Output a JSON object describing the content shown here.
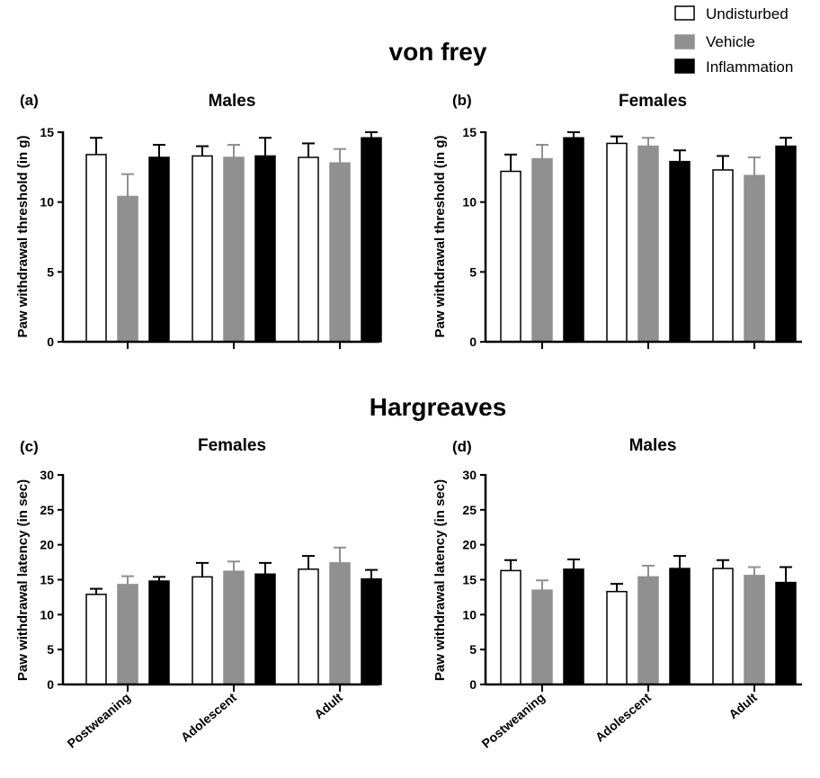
{
  "sections": [
    {
      "title": "von frey"
    },
    {
      "title": "Hargreaves"
    }
  ],
  "legend": [
    {
      "name": "Undisturbed",
      "color": "#ffffff"
    },
    {
      "name": "Vehicle",
      "color": "#909090"
    },
    {
      "name": "Inflammation",
      "color": "#000000"
    }
  ],
  "chart_data": [
    {
      "type": "bar",
      "panel": "(a)",
      "title": "Males",
      "ylabel": "Paw withdrawal threshold (in g)",
      "ylim": [
        0,
        15
      ],
      "yticks": [
        0,
        5,
        10,
        15
      ],
      "categories": [
        "",
        "",
        ""
      ],
      "series": [
        {
          "name": "Undisturbed",
          "values": [
            13.4,
            13.3,
            13.2
          ],
          "errors": [
            1.2,
            0.7,
            1.0
          ]
        },
        {
          "name": "Vehicle",
          "values": [
            10.4,
            13.2,
            12.8
          ],
          "errors": [
            1.6,
            0.9,
            1.0
          ]
        },
        {
          "name": "Inflammation",
          "values": [
            13.2,
            13.3,
            14.6
          ],
          "errors": [
            0.9,
            1.3,
            0.4
          ]
        }
      ]
    },
    {
      "type": "bar",
      "panel": "(b)",
      "title": "Females",
      "ylabel": "Paw withdrawal threshold (in g)",
      "ylim": [
        0,
        15
      ],
      "yticks": [
        0,
        5,
        10,
        15
      ],
      "categories": [
        "",
        "",
        ""
      ],
      "series": [
        {
          "name": "Undisturbed",
          "values": [
            12.2,
            14.2,
            12.3
          ],
          "errors": [
            1.2,
            0.5,
            1.0
          ]
        },
        {
          "name": "Vehicle",
          "values": [
            13.1,
            14.0,
            11.9
          ],
          "errors": [
            1.0,
            0.6,
            1.3
          ]
        },
        {
          "name": "Inflammation",
          "values": [
            14.6,
            12.9,
            14.0
          ],
          "errors": [
            0.4,
            0.8,
            0.6
          ]
        }
      ]
    },
    {
      "type": "bar",
      "panel": "(c)",
      "title": "Females",
      "ylabel": "Paw withdrawal latency (in sec)",
      "ylim": [
        0,
        30
      ],
      "yticks": [
        0,
        5,
        10,
        15,
        20,
        25,
        30
      ],
      "categories": [
        "Postweaning",
        "Adolescent",
        "Adult"
      ],
      "series": [
        {
          "name": "Undisturbed",
          "values": [
            12.9,
            15.4,
            16.5
          ],
          "errors": [
            0.8,
            2.0,
            1.9
          ]
        },
        {
          "name": "Vehicle",
          "values": [
            14.3,
            16.2,
            17.4
          ],
          "errors": [
            1.2,
            1.4,
            2.2
          ]
        },
        {
          "name": "Inflammation",
          "values": [
            14.8,
            15.8,
            15.1
          ],
          "errors": [
            0.6,
            1.6,
            1.3
          ]
        }
      ]
    },
    {
      "type": "bar",
      "panel": "(d)",
      "title": "Males",
      "ylabel": "Paw withdrawal latency (in sec)",
      "ylim": [
        0,
        30
      ],
      "yticks": [
        0,
        5,
        10,
        15,
        20,
        25,
        30
      ],
      "categories": [
        "Postweaning",
        "Adolescent",
        "Adult"
      ],
      "series": [
        {
          "name": "Undisturbed",
          "values": [
            16.3,
            13.3,
            16.6
          ],
          "errors": [
            1.5,
            1.1,
            1.2
          ]
        },
        {
          "name": "Vehicle",
          "values": [
            13.5,
            15.4,
            15.6
          ],
          "errors": [
            1.4,
            1.6,
            1.2
          ]
        },
        {
          "name": "Inflammation",
          "values": [
            16.5,
            16.6,
            14.6
          ],
          "errors": [
            1.4,
            1.8,
            2.2
          ]
        }
      ]
    }
  ]
}
